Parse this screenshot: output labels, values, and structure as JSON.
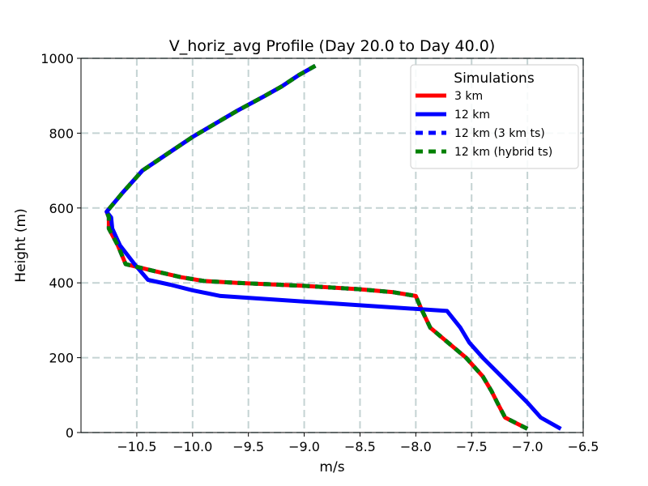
{
  "chart_data": {
    "type": "line",
    "title": "V_horiz_avg Profile (Day 20.0 to Day 40.0)",
    "xlabel": "m/s",
    "ylabel": "Height (m)",
    "xlim": [
      -11.0,
      -6.5
    ],
    "ylim": [
      0,
      1000
    ],
    "xticks": [
      -10.5,
      -10.0,
      -9.5,
      -9.0,
      -8.5,
      -8.0,
      -7.5,
      -7.0,
      -6.5
    ],
    "xtick_labels": [
      "−10.5",
      "−10.0",
      "−9.5",
      "−9.0",
      "−8.5",
      "−8.0",
      "−7.5",
      "−7.0",
      "−6.5"
    ],
    "yticks": [
      0,
      200,
      400,
      600,
      800,
      1000
    ],
    "ytick_labels": [
      "0",
      "200",
      "400",
      "600",
      "800",
      "1000"
    ],
    "grid": true,
    "legend": {
      "title": "Simulations",
      "position": "top-right",
      "entries": [
        "3 km",
        "12 km",
        "12 km (3 km ts)",
        "12 km (hybrid ts)"
      ]
    },
    "series": [
      {
        "name": "3 km",
        "color": "#ff0000",
        "style": "solid",
        "points": [
          [
            -7.0,
            10
          ],
          [
            -7.2,
            40
          ],
          [
            -7.27,
            80
          ],
          [
            -7.32,
            110
          ],
          [
            -7.4,
            150
          ],
          [
            -7.55,
            200
          ],
          [
            -7.75,
            250
          ],
          [
            -7.87,
            280
          ],
          [
            -7.95,
            330
          ],
          [
            -8.0,
            365
          ],
          [
            -8.2,
            375
          ],
          [
            -8.5,
            383
          ],
          [
            -9.0,
            392
          ],
          [
            -9.6,
            400
          ],
          [
            -9.9,
            405
          ],
          [
            -10.1,
            415
          ],
          [
            -10.35,
            432
          ],
          [
            -10.6,
            450
          ],
          [
            -10.67,
            500
          ],
          [
            -10.75,
            545
          ],
          [
            -10.75,
            575
          ],
          [
            -10.77,
            590
          ],
          [
            -10.63,
            640
          ],
          [
            -10.45,
            700
          ],
          [
            -10.2,
            750
          ],
          [
            -10.0,
            790
          ],
          [
            -9.8,
            825
          ],
          [
            -9.6,
            860
          ],
          [
            -9.35,
            900
          ],
          [
            -9.2,
            925
          ],
          [
            -9.05,
            955
          ],
          [
            -8.9,
            980
          ]
        ]
      },
      {
        "name": "12 km",
        "color": "#0000ff",
        "style": "solid",
        "points": [
          [
            -6.7,
            10
          ],
          [
            -6.88,
            40
          ],
          [
            -7.0,
            80
          ],
          [
            -7.2,
            140
          ],
          [
            -7.4,
            200
          ],
          [
            -7.52,
            240
          ],
          [
            -7.6,
            280
          ],
          [
            -7.72,
            325
          ],
          [
            -8.5,
            340
          ],
          [
            -9.75,
            365
          ],
          [
            -10.0,
            380
          ],
          [
            -10.2,
            395
          ],
          [
            -10.4,
            408
          ],
          [
            -10.52,
            450
          ],
          [
            -10.65,
            500
          ],
          [
            -10.72,
            545
          ],
          [
            -10.73,
            575
          ],
          [
            -10.77,
            590
          ],
          [
            -10.63,
            640
          ],
          [
            -10.45,
            700
          ],
          [
            -10.2,
            750
          ],
          [
            -10.0,
            790
          ],
          [
            -9.8,
            825
          ],
          [
            -9.6,
            860
          ],
          [
            -9.35,
            900
          ],
          [
            -9.2,
            925
          ],
          [
            -9.05,
            955
          ],
          [
            -8.9,
            980
          ]
        ]
      },
      {
        "name": "12 km (3 km ts)",
        "color": "#0000ff",
        "style": "dashed",
        "points": [
          [
            -7.0,
            10
          ],
          [
            -7.2,
            40
          ],
          [
            -7.27,
            80
          ],
          [
            -7.32,
            110
          ],
          [
            -7.4,
            150
          ],
          [
            -7.55,
            200
          ],
          [
            -7.75,
            250
          ],
          [
            -7.87,
            280
          ],
          [
            -7.95,
            330
          ],
          [
            -8.0,
            365
          ],
          [
            -8.2,
            375
          ],
          [
            -8.5,
            383
          ],
          [
            -9.0,
            392
          ],
          [
            -9.6,
            400
          ],
          [
            -9.9,
            405
          ],
          [
            -10.1,
            415
          ],
          [
            -10.35,
            432
          ],
          [
            -10.6,
            450
          ],
          [
            -10.67,
            500
          ],
          [
            -10.75,
            545
          ],
          [
            -10.75,
            575
          ],
          [
            -10.77,
            590
          ],
          [
            -10.63,
            640
          ],
          [
            -10.45,
            700
          ],
          [
            -10.2,
            750
          ],
          [
            -10.0,
            790
          ],
          [
            -9.8,
            825
          ],
          [
            -9.6,
            860
          ],
          [
            -9.35,
            900
          ],
          [
            -9.2,
            925
          ],
          [
            -9.05,
            955
          ],
          [
            -8.9,
            980
          ]
        ]
      },
      {
        "name": "12 km (hybrid ts)",
        "color": "#008000",
        "style": "dashed",
        "points": [
          [
            -7.0,
            10
          ],
          [
            -7.2,
            40
          ],
          [
            -7.27,
            80
          ],
          [
            -7.32,
            110
          ],
          [
            -7.4,
            150
          ],
          [
            -7.55,
            200
          ],
          [
            -7.75,
            250
          ],
          [
            -7.87,
            280
          ],
          [
            -7.95,
            330
          ],
          [
            -8.0,
            365
          ],
          [
            -8.2,
            375
          ],
          [
            -8.5,
            383
          ],
          [
            -9.0,
            392
          ],
          [
            -9.6,
            400
          ],
          [
            -9.9,
            405
          ],
          [
            -10.1,
            415
          ],
          [
            -10.35,
            432
          ],
          [
            -10.6,
            450
          ],
          [
            -10.67,
            500
          ],
          [
            -10.75,
            545
          ],
          [
            -10.75,
            575
          ],
          [
            -10.77,
            590
          ],
          [
            -10.63,
            640
          ],
          [
            -10.45,
            700
          ],
          [
            -10.2,
            750
          ],
          [
            -10.0,
            790
          ],
          [
            -9.8,
            825
          ],
          [
            -9.6,
            860
          ],
          [
            -9.35,
            900
          ],
          [
            -9.2,
            925
          ],
          [
            -9.05,
            955
          ],
          [
            -8.9,
            980
          ]
        ]
      }
    ]
  }
}
